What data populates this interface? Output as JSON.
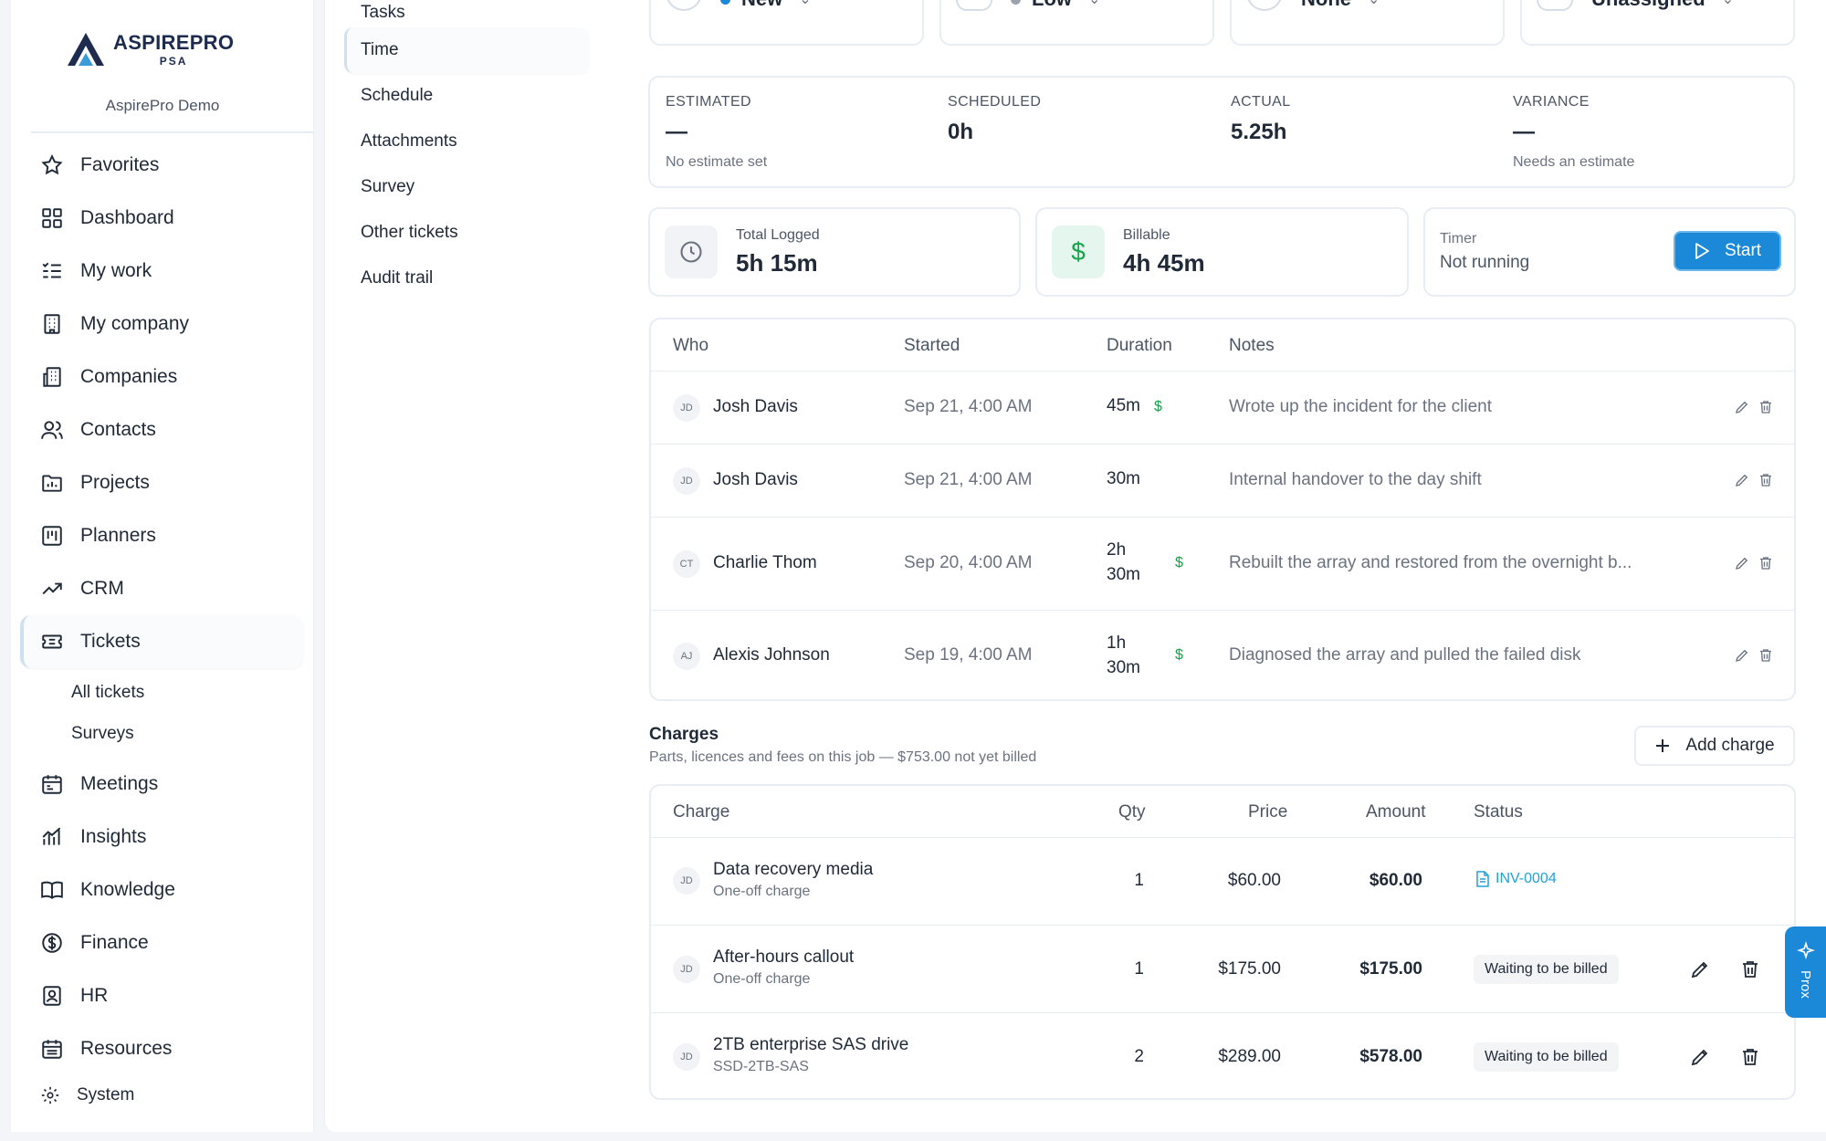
{
  "brand": {
    "name": "ASPIREPRO",
    "sub": "PSA",
    "org": "AspirePro Demo"
  },
  "sidebar": {
    "items": [
      {
        "label": "Favorites",
        "icon": "star-icon"
      },
      {
        "label": "Dashboard",
        "icon": "dashboard-icon"
      },
      {
        "label": "My work",
        "icon": "list-check-icon"
      },
      {
        "label": "My company",
        "icon": "building-icon"
      },
      {
        "label": "Companies",
        "icon": "buildings-icon"
      },
      {
        "label": "Contacts",
        "icon": "users-icon"
      },
      {
        "label": "Projects",
        "icon": "folder-chart-icon"
      },
      {
        "label": "Planners",
        "icon": "kanban-icon"
      },
      {
        "label": "CRM",
        "icon": "trend-up-icon"
      },
      {
        "label": "Tickets",
        "icon": "ticket-icon",
        "active": true
      }
    ],
    "sub_items": [
      {
        "label": "All tickets"
      },
      {
        "label": "Surveys"
      }
    ],
    "items_after": [
      {
        "label": "Meetings",
        "icon": "calendar-icon"
      },
      {
        "label": "Insights",
        "icon": "bar-chart-icon"
      },
      {
        "label": "Knowledge",
        "icon": "book-icon"
      },
      {
        "label": "Finance",
        "icon": "dollar-circle-icon"
      },
      {
        "label": "HR",
        "icon": "id-badge-icon"
      },
      {
        "label": "Resources",
        "icon": "calendar-grid-icon"
      }
    ],
    "system": {
      "label": "System",
      "icon": "gear-icon"
    }
  },
  "ticket_nav": {
    "items": [
      {
        "label": "Tasks"
      },
      {
        "label": "Time",
        "active": true
      },
      {
        "label": "Schedule"
      },
      {
        "label": "Attachments"
      },
      {
        "label": "Survey"
      },
      {
        "label": "Other tickets"
      },
      {
        "label": "Audit trail"
      }
    ]
  },
  "status_pills": {
    "status": {
      "label": "New",
      "color": "#1b88d8"
    },
    "priority": {
      "label": "Low",
      "color": "#9ca3af"
    },
    "sla": {
      "label": "None"
    },
    "assignee": {
      "label": "Unassigned"
    }
  },
  "metrics": {
    "estimated": {
      "label": "ESTIMATED",
      "value": "—",
      "sub": "No estimate set"
    },
    "scheduled": {
      "label": "SCHEDULED",
      "value": "0h",
      "sub": ""
    },
    "actual": {
      "label": "ACTUAL",
      "value": "5.25h",
      "sub": ""
    },
    "variance": {
      "label": "VARIANCE",
      "value": "—",
      "sub": "Needs an estimate"
    }
  },
  "stats": {
    "total_logged": {
      "label": "Total Logged",
      "value": "5h 15m"
    },
    "billable": {
      "label": "Billable",
      "value": "4h 45m"
    },
    "timer": {
      "label": "Timer",
      "value": "Not running",
      "button": "Start"
    }
  },
  "time_table": {
    "headers": {
      "who": "Who",
      "started": "Started",
      "duration": "Duration",
      "notes": "Notes"
    },
    "rows": [
      {
        "initials": "JD",
        "who": "Josh Davis",
        "started": "Sep 21, 4:00 AM",
        "duration_1": "45m",
        "duration_2": "",
        "billable": "$",
        "notes": "Wrote up the incident for the client"
      },
      {
        "initials": "JD",
        "who": "Josh Davis",
        "started": "Sep 21, 4:00 AM",
        "duration_1": "30m",
        "duration_2": "",
        "billable": "",
        "notes": "Internal handover to the day shift"
      },
      {
        "initials": "CT",
        "who": "Charlie Thom",
        "started": "Sep 20, 4:00 AM",
        "duration_1": "2h",
        "duration_2": "30m",
        "billable": "$",
        "notes": "Rebuilt the array and restored from the overnight b..."
      },
      {
        "initials": "AJ",
        "who": "Alexis Johnson",
        "started": "Sep 19, 4:00 AM",
        "duration_1": "1h",
        "duration_2": "30m",
        "billable": "$",
        "notes": "Diagnosed the array and pulled the failed disk"
      }
    ]
  },
  "charges": {
    "title": "Charges",
    "subtitle": "Parts, licences and fees on this job — $753.00 not yet billed",
    "add_label": "Add charge",
    "headers": {
      "charge": "Charge",
      "qty": "Qty",
      "price": "Price",
      "amount": "Amount",
      "status": "Status"
    },
    "rows": [
      {
        "initials": "JD",
        "name": "Data recovery media",
        "sub": "One-off charge",
        "qty": "1",
        "price": "$60.00",
        "amount": "$60.00",
        "status": "INV-0004",
        "status_kind": "invoice"
      },
      {
        "initials": "JD",
        "name": "After-hours callout",
        "sub": "One-off charge",
        "qty": "1",
        "price": "$175.00",
        "amount": "$175.00",
        "status": "Waiting to be billed",
        "status_kind": "badge"
      },
      {
        "initials": "JD",
        "name": "2TB enterprise SAS drive",
        "sub": "SSD-2TB-SAS",
        "qty": "2",
        "price": "$289.00",
        "amount": "$578.00",
        "status": "Waiting to be billed",
        "status_kind": "badge"
      }
    ]
  },
  "prox": {
    "label": "Prox"
  }
}
